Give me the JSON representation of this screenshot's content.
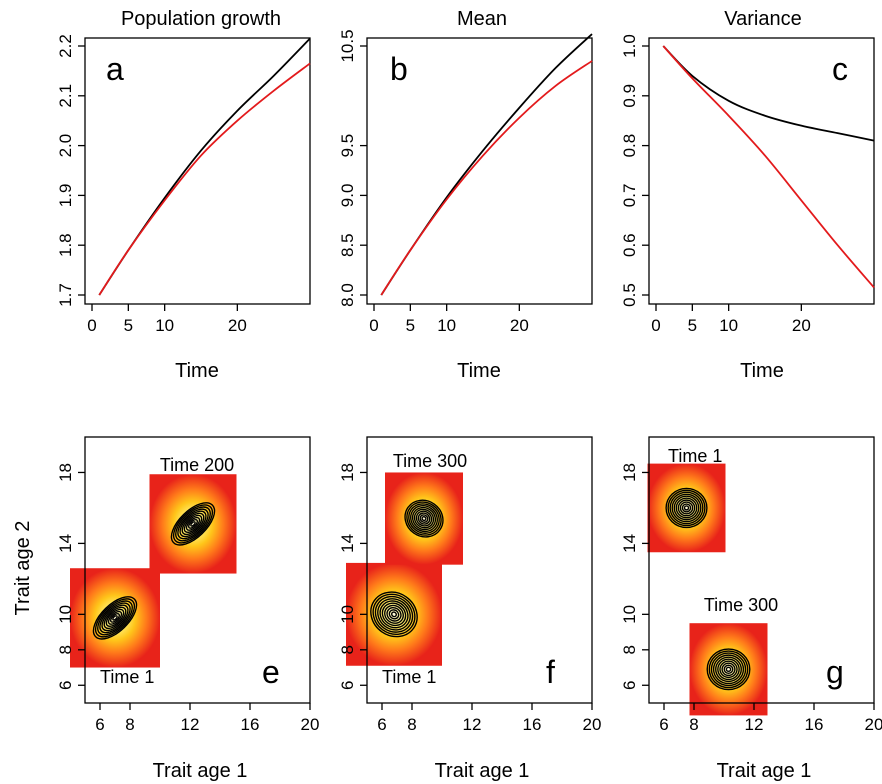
{
  "chart_data": [
    {
      "panel": "a",
      "type": "line",
      "title": "Population growth",
      "xlabel": "Time",
      "ylabel": "",
      "xlim": [
        0,
        30
      ],
      "ylim": [
        1.7,
        2.2
      ],
      "xticks": [
        0,
        5,
        10,
        20
      ],
      "yticks": [
        1.7,
        1.8,
        1.9,
        2.0,
        2.1,
        2.2
      ],
      "ytick_labels": [
        "1.7",
        "1.8",
        "1.9",
        "2.0",
        "2.1",
        "2.2"
      ],
      "series": [
        {
          "color": "#000000",
          "x": [
            1,
            5,
            10,
            15,
            20,
            25,
            30
          ],
          "y": [
            1.7,
            1.79,
            1.895,
            1.99,
            2.07,
            2.14,
            2.215
          ]
        },
        {
          "color": "#e31a1c",
          "x": [
            1,
            5,
            10,
            15,
            20,
            25,
            30
          ],
          "y": [
            1.7,
            1.79,
            1.89,
            1.98,
            2.05,
            2.11,
            2.165
          ]
        }
      ]
    },
    {
      "panel": "b",
      "type": "line",
      "title": "Mean",
      "xlabel": "Time",
      "ylabel": "",
      "xlim": [
        0,
        30
      ],
      "ylim": [
        8.0,
        10.5
      ],
      "xticks": [
        0,
        5,
        10,
        20
      ],
      "yticks": [
        8.0,
        8.5,
        9.0,
        9.5,
        10.5
      ],
      "ytick_labels": [
        "8.0",
        "8.5",
        "9.0",
        "9.5",
        "10.5"
      ],
      "series": [
        {
          "color": "#000000",
          "x": [
            1,
            5,
            10,
            15,
            20,
            25,
            30
          ],
          "y": [
            8.0,
            8.45,
            8.98,
            9.45,
            9.88,
            10.28,
            10.62
          ]
        },
        {
          "color": "#e31a1c",
          "x": [
            1,
            5,
            10,
            15,
            20,
            25,
            30
          ],
          "y": [
            8.0,
            8.45,
            8.96,
            9.4,
            9.78,
            10.1,
            10.35
          ]
        }
      ]
    },
    {
      "panel": "c",
      "type": "line",
      "title": "Variance",
      "xlabel": "Time",
      "ylabel": "",
      "xlim": [
        0,
        30
      ],
      "ylim": [
        0.5,
        1.0
      ],
      "xticks": [
        0,
        5,
        10,
        20
      ],
      "yticks": [
        0.5,
        0.6,
        0.7,
        0.8,
        0.9,
        1.0
      ],
      "ytick_labels": [
        "0.5",
        "0.6",
        "0.7",
        "0.8",
        "0.9",
        "1.0"
      ],
      "series": [
        {
          "color": "#000000",
          "x": [
            1,
            5,
            10,
            15,
            20,
            25,
            30
          ],
          "y": [
            1.0,
            0.94,
            0.89,
            0.86,
            0.84,
            0.825,
            0.81
          ]
        },
        {
          "color": "#e31a1c",
          "x": [
            1,
            5,
            10,
            15,
            20,
            25,
            30
          ],
          "y": [
            1.0,
            0.935,
            0.86,
            0.78,
            0.69,
            0.6,
            0.515
          ]
        }
      ]
    },
    {
      "panel": "e",
      "type": "heatmap",
      "title": "",
      "xlabel": "Trait age 1",
      "ylabel": "Trait age 2",
      "xlim": [
        5,
        20
      ],
      "ylim": [
        5,
        20
      ],
      "xticks": [
        6,
        8,
        12,
        16,
        20
      ],
      "yticks": [
        6,
        8,
        10,
        14,
        18
      ],
      "distributions": [
        {
          "label": "Time 1",
          "center": [
            7,
            9.8
          ],
          "half_width": [
            3.0,
            2.8
          ],
          "contour_radius": [
            1.8,
            0.75
          ],
          "angle_deg": 44,
          "levels": 10
        },
        {
          "label": "Time 200",
          "center": [
            12.2,
            15.1
          ],
          "half_width": [
            2.9,
            2.8
          ],
          "contour_radius": [
            1.8,
            0.75
          ],
          "angle_deg": 44,
          "levels": 10
        }
      ]
    },
    {
      "panel": "f",
      "type": "heatmap",
      "title": "",
      "xlabel": "Trait age 1",
      "ylabel": "",
      "xlim": [
        5,
        20
      ],
      "ylim": [
        5,
        20
      ],
      "xticks": [
        6,
        8,
        12,
        16,
        20
      ],
      "yticks": [
        6,
        8,
        10,
        14,
        18
      ],
      "distributions": [
        {
          "label": "Time 1",
          "center": [
            6.8,
            10.0
          ],
          "half_width": [
            3.2,
            2.9
          ],
          "contour_radius": [
            1.6,
            1.2
          ],
          "angle_deg": -35,
          "levels": 10
        },
        {
          "label": "Time 300",
          "center": [
            8.8,
            15.4
          ],
          "half_width": [
            2.6,
            2.6
          ],
          "contour_radius": [
            1.3,
            1.0
          ],
          "angle_deg": -35,
          "levels": 10
        }
      ]
    },
    {
      "panel": "g",
      "type": "heatmap",
      "title": "",
      "xlabel": "Trait age 1",
      "ylabel": "",
      "xlim": [
        5,
        20
      ],
      "ylim": [
        5,
        20
      ],
      "xticks": [
        6,
        8,
        12,
        16,
        20
      ],
      "yticks": [
        6,
        8,
        10,
        14,
        18
      ],
      "distributions": [
        {
          "label": "Time 1",
          "center": [
            7.5,
            16.0
          ],
          "half_width": [
            2.6,
            2.5
          ],
          "contour_radius": [
            1.3,
            1.15
          ],
          "angle_deg": 90,
          "levels": 10
        },
        {
          "label": "Time 300",
          "center": [
            10.3,
            6.9
          ],
          "half_width": [
            2.6,
            2.6
          ],
          "contour_radius": [
            1.35,
            1.2
          ],
          "angle_deg": 90,
          "levels": 10
        }
      ]
    }
  ]
}
